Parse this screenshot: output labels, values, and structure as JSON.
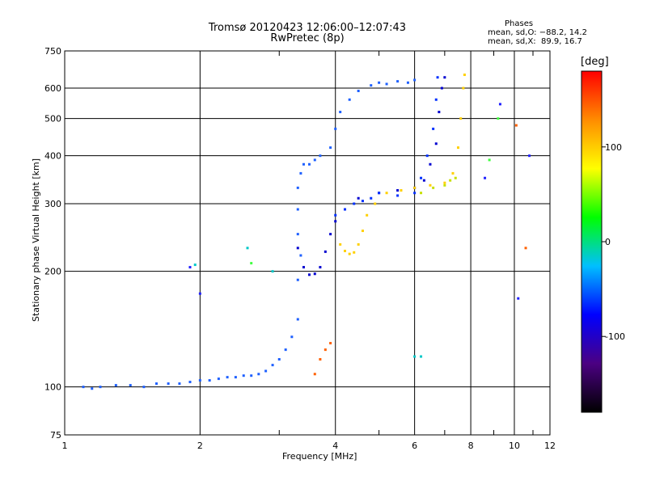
{
  "chart_data": {
    "type": "scatter",
    "title": "Tromsø 20120423 12:06:00–12:07:43",
    "subtitle": "RwPretec (8p)",
    "xlabel": "Frequency [MHz]",
    "ylabel": "Stationary phase Virtual Height [km]",
    "x_scale": "log",
    "y_scale": "log",
    "xlim": [
      1,
      12
    ],
    "ylim": [
      75,
      750
    ],
    "x_ticks": [
      1,
      2,
      4,
      6,
      8,
      10,
      12
    ],
    "y_ticks": [
      75,
      100,
      200,
      300,
      400,
      500,
      600,
      750
    ],
    "grid": true,
    "info_box": {
      "heading": "Phases",
      "line_o": "mean, sd,O: −88.2, 14.2",
      "line_x": "mean, sd,X:  89.9, 16.7"
    },
    "colorbar": {
      "label": "[deg]",
      "range": [
        -180,
        180
      ],
      "ticks": [
        100,
        0,
        -100
      ],
      "colormap": [
        "#000000",
        "#4b0082",
        "#0000ff",
        "#00bfff",
        "#00ff00",
        "#ffff00",
        "#ff8c00",
        "#ff0000"
      ]
    },
    "series": [
      {
        "color": "#1e60ff",
        "points": [
          [
            1.1,
            100
          ],
          [
            1.15,
            99
          ],
          [
            1.2,
            100
          ],
          [
            1.3,
            101
          ],
          [
            1.4,
            101
          ],
          [
            1.5,
            100
          ],
          [
            1.6,
            102
          ],
          [
            1.7,
            102
          ],
          [
            1.8,
            102
          ],
          [
            1.9,
            103
          ],
          [
            2.0,
            104
          ],
          [
            2.1,
            104
          ],
          [
            2.2,
            105
          ],
          [
            2.3,
            106
          ],
          [
            2.4,
            106
          ],
          [
            2.5,
            107
          ],
          [
            2.6,
            107
          ],
          [
            2.7,
            108
          ],
          [
            2.8,
            110
          ],
          [
            2.9,
            114
          ],
          [
            3.0,
            118
          ],
          [
            3.1,
            125
          ],
          [
            3.2,
            135
          ],
          [
            3.3,
            150
          ],
          [
            3.3,
            190
          ],
          [
            3.35,
            220
          ],
          [
            3.3,
            250
          ],
          [
            3.3,
            290
          ],
          [
            3.3,
            330
          ],
          [
            3.35,
            360
          ],
          [
            3.4,
            380
          ],
          [
            3.5,
            380
          ],
          [
            3.6,
            390
          ],
          [
            3.7,
            400
          ],
          [
            3.9,
            420
          ],
          [
            4.0,
            470
          ],
          [
            4.1,
            520
          ],
          [
            4.3,
            560
          ],
          [
            4.5,
            590
          ],
          [
            4.8,
            610
          ],
          [
            5.0,
            620
          ],
          [
            5.2,
            615
          ],
          [
            5.5,
            625
          ],
          [
            5.8,
            620
          ],
          [
            6.0,
            630
          ]
        ]
      },
      {
        "color": "#0000d0",
        "points": [
          [
            3.3,
            230
          ],
          [
            3.4,
            205
          ],
          [
            3.5,
            196
          ],
          [
            3.6,
            197
          ],
          [
            3.7,
            205
          ],
          [
            3.8,
            225
          ],
          [
            3.9,
            250
          ],
          [
            4.0,
            270
          ],
          [
            4.2,
            290
          ],
          [
            4.5,
            310
          ],
          [
            5.0,
            320
          ],
          [
            5.5,
            325
          ],
          [
            6.0,
            330
          ],
          [
            6.3,
            345
          ],
          [
            6.5,
            380
          ],
          [
            6.7,
            430
          ],
          [
            6.8,
            520
          ],
          [
            6.9,
            600
          ],
          [
            7.0,
            640
          ]
        ]
      },
      {
        "color": "#0030ff",
        "points": [
          [
            4.0,
            280
          ],
          [
            4.2,
            290
          ],
          [
            4.4,
            300
          ],
          [
            4.6,
            305
          ],
          [
            4.8,
            310
          ],
          [
            5.0,
            320
          ],
          [
            5.5,
            315
          ],
          [
            6.0,
            320
          ],
          [
            6.2,
            350
          ],
          [
            6.4,
            400
          ],
          [
            6.6,
            470
          ],
          [
            6.7,
            560
          ],
          [
            6.75,
            640
          ]
        ]
      },
      {
        "color": "#ffd000",
        "points": [
          [
            4.1,
            235
          ],
          [
            4.2,
            226
          ],
          [
            4.3,
            222
          ],
          [
            4.4,
            224
          ],
          [
            4.5,
            235
          ],
          [
            4.6,
            255
          ],
          [
            4.7,
            280
          ],
          [
            4.9,
            300
          ],
          [
            5.2,
            320
          ],
          [
            5.6,
            325
          ],
          [
            6.0,
            330
          ],
          [
            6.5,
            335
          ],
          [
            7.0,
            340
          ],
          [
            7.3,
            360
          ],
          [
            7.5,
            420
          ],
          [
            7.6,
            500
          ],
          [
            7.7,
            600
          ],
          [
            7.75,
            650
          ]
        ]
      },
      {
        "color": "#c8e000",
        "points": [
          [
            6.2,
            320
          ],
          [
            6.6,
            330
          ],
          [
            7.0,
            335
          ],
          [
            7.2,
            345
          ],
          [
            7.4,
            350
          ]
        ]
      },
      {
        "color": "#ff6000",
        "points": [
          [
            3.7,
            118
          ],
          [
            3.8,
            125
          ],
          [
            3.9,
            130
          ],
          [
            3.6,
            108
          ],
          [
            10.1,
            480
          ],
          [
            10.6,
            230
          ]
        ]
      },
      {
        "color": "#00c8c8",
        "points": [
          [
            2.9,
            200
          ],
          [
            6.0,
            120
          ],
          [
            6.2,
            120
          ],
          [
            1.95,
            208
          ],
          [
            2.55,
            230
          ]
        ]
      },
      {
        "color": "#40ff40",
        "points": [
          [
            9.2,
            500
          ],
          [
            8.8,
            390
          ],
          [
            2.6,
            210
          ]
        ]
      },
      {
        "color": "#2020ff",
        "points": [
          [
            9.3,
            545
          ],
          [
            8.6,
            350
          ],
          [
            10.2,
            170
          ],
          [
            10.8,
            400
          ],
          [
            1.9,
            205
          ],
          [
            2.0,
            175
          ]
        ]
      }
    ]
  }
}
